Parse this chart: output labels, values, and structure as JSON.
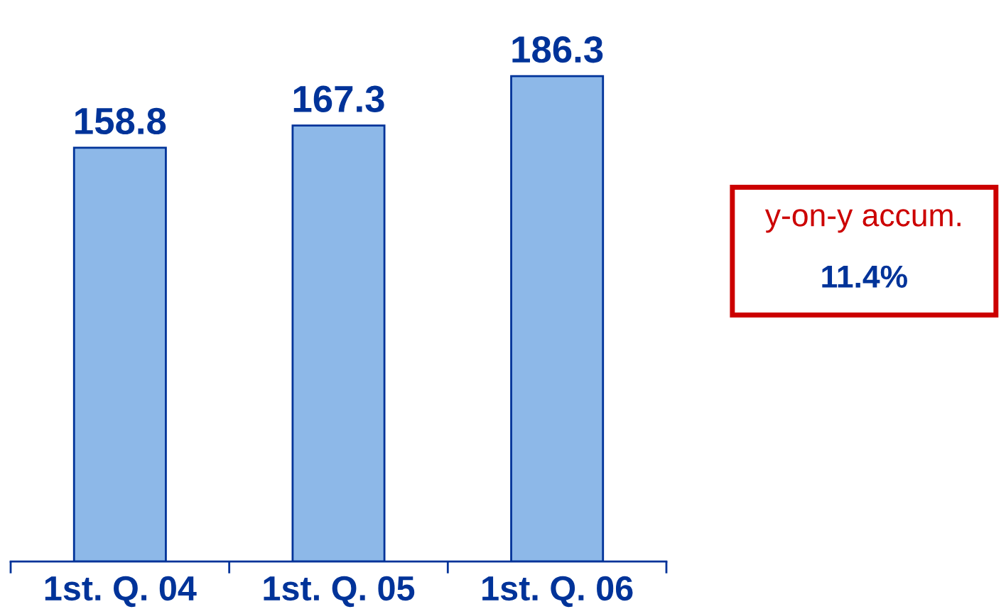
{
  "chart_data": {
    "type": "bar",
    "categories": [
      "1st. Q. 04",
      "1st. Q. 05",
      "1st. Q. 06"
    ],
    "values": [
      158.8,
      167.3,
      186.3
    ],
    "color": "#8db8e8",
    "data_labels": true,
    "tick_labels": "x",
    "annotations": [
      "y-on-y accum.",
      "11.4%"
    ]
  }
}
